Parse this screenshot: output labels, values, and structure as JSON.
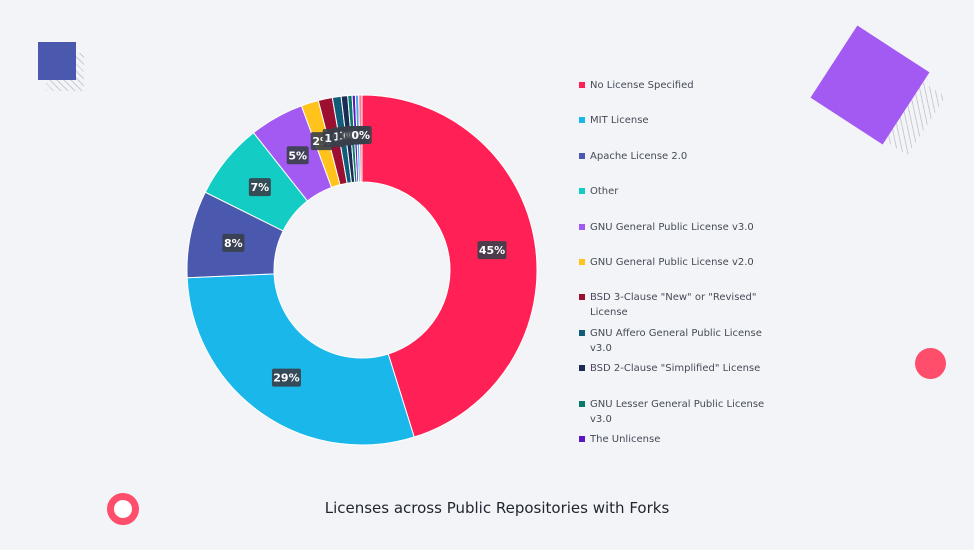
{
  "decorations": {
    "blue_square_color": "#4a58ad",
    "purple_diamond_color": "#a35af2",
    "pink_color": "#ff4e6b"
  },
  "chart_data": {
    "type": "pie",
    "style": "donut",
    "title": "Licenses across Public Repositories with Forks",
    "legend_position": "right",
    "series": [
      {
        "name": "No License Specified",
        "value": 45,
        "label": "45%",
        "color": "#ff2155"
      },
      {
        "name": "MIT License",
        "value": 29,
        "label": "29%",
        "color": "#1ab7ea"
      },
      {
        "name": "Apache License 2.0",
        "value": 8,
        "label": "8%",
        "color": "#4a58ad"
      },
      {
        "name": "Other",
        "value": 7,
        "label": "7%",
        "color": "#13cdc4"
      },
      {
        "name": "GNU General Public License v3.0",
        "value": 5,
        "label": "5%",
        "color": "#a35af2"
      },
      {
        "name": "GNU General Public License v2.0",
        "value": 1.6,
        "label": "2%",
        "color": "#ffc31c"
      },
      {
        "name": "BSD 3-Clause \"New\" or \"Revised\" License",
        "value": 1.3,
        "label": "1%",
        "color": "#9c0f30"
      },
      {
        "name": "GNU Affero General Public License v3.0",
        "value": 0.8,
        "label": "1%",
        "color": "#0f5d78"
      },
      {
        "name": "BSD 2-Clause \"Simplified\" License",
        "value": 0.6,
        "label": "1%",
        "color": "#1d2c55"
      },
      {
        "name": "GNU Lesser General Public License v3.0",
        "value": 0.4,
        "label": "0%",
        "color": "#087a6c"
      },
      {
        "name": "The Unlicense",
        "value": 0.3,
        "label": "0%",
        "color": "#5a16c7"
      },
      {
        "name": "",
        "value": 0.3,
        "label": "0%",
        "color": "#47a7e0"
      },
      {
        "name": "",
        "value": 0.3,
        "label": "0%",
        "color": "#ff7a92"
      }
    ]
  }
}
